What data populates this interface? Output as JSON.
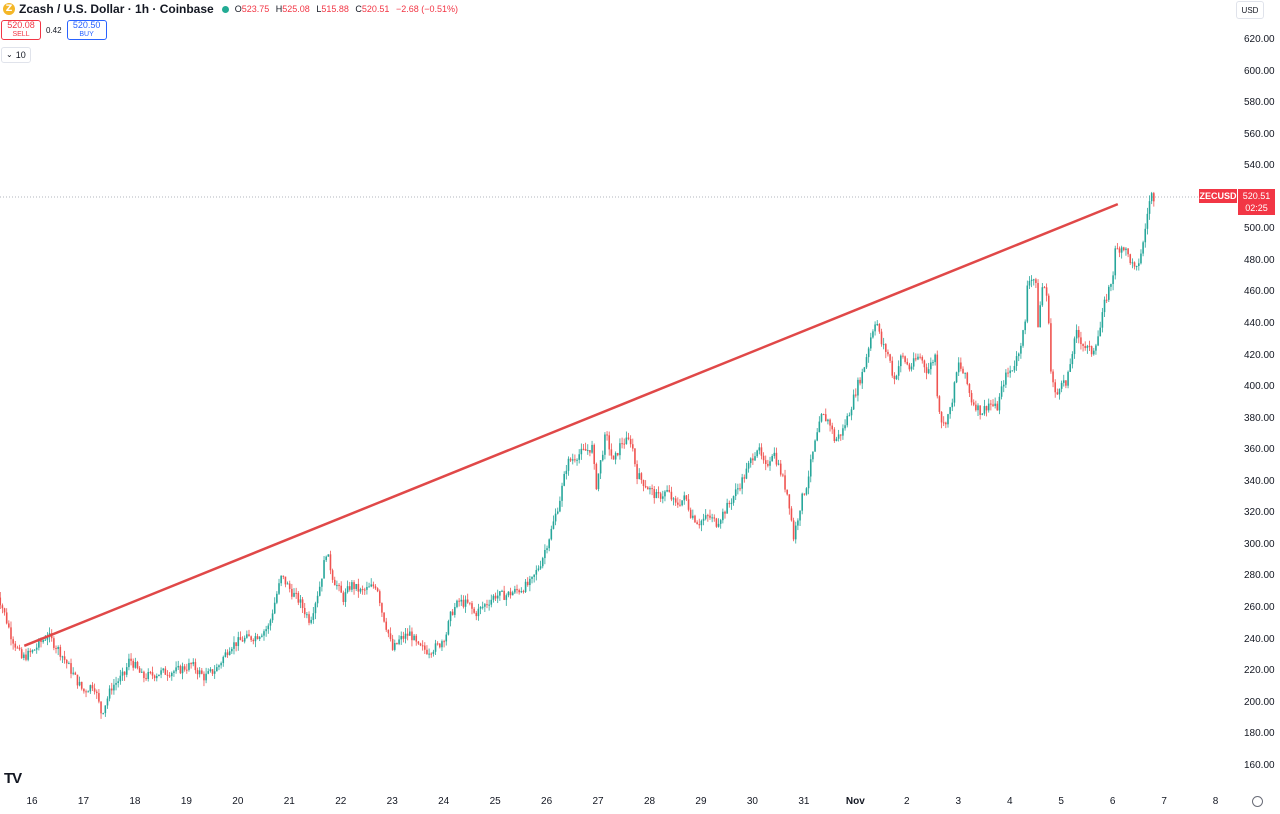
{
  "header": {
    "symbol_icon": "zcash-coin-icon",
    "coin_glyph": "Z",
    "title": "Zcash / U.S. Dollar · 1h · Coinbase",
    "status_color": "#22ab94",
    "open_label": "O",
    "open": "523.75",
    "high_label": "H",
    "high": "525.08",
    "low_label": "L",
    "low": "515.88",
    "close_label": "C",
    "close": "520.51",
    "change": "−2.68 (−0.51%)"
  },
  "trade": {
    "sell_price": "520.08",
    "sell_label": "SELL",
    "spread": "0.42",
    "buy_price": "520.50",
    "buy_label": "BUY"
  },
  "indicator": {
    "chevron_icon": "chevron-down-icon",
    "chevron": "⌄",
    "value": "10"
  },
  "currency": "USD",
  "logo": "TV",
  "price_label": {
    "symbol": "ZECUSD",
    "price": "520.51",
    "countdown": "02:25"
  },
  "colors": {
    "up": "#26a69a",
    "down": "#ef5350",
    "trendline": "#e04848",
    "last_price_tag": "#f23645"
  },
  "chart_data": {
    "type": "candlestick",
    "timeframe": "1h",
    "ylim": [
      150,
      630
    ],
    "y_ticks": [
      "620.00",
      "600.00",
      "580.00",
      "560.00",
      "540.00",
      "500.00",
      "480.00",
      "460.00",
      "440.00",
      "420.00",
      "400.00",
      "380.00",
      "360.00",
      "340.00",
      "320.00",
      "300.00",
      "280.00",
      "260.00",
      "240.00",
      "220.00",
      "200.00",
      "180.00",
      "160.00"
    ],
    "x_ticks": [
      "16",
      "17",
      "18",
      "19",
      "20",
      "21",
      "22",
      "23",
      "24",
      "25",
      "26",
      "27",
      "28",
      "29",
      "30",
      "31",
      "Nov",
      "2",
      "3",
      "4",
      "5",
      "6",
      "7",
      "8"
    ],
    "last_price": 520.51,
    "trendline": [
      {
        "day": 15.85,
        "price": 236
      },
      {
        "day": 37.1,
        "price": 516
      }
    ],
    "close_path": [
      {
        "day": 15.3,
        "price": 272
      },
      {
        "day": 15.45,
        "price": 258
      },
      {
        "day": 15.6,
        "price": 242
      },
      {
        "day": 15.8,
        "price": 228
      },
      {
        "day": 16.0,
        "price": 232
      },
      {
        "day": 16.3,
        "price": 243
      },
      {
        "day": 16.55,
        "price": 232
      },
      {
        "day": 16.8,
        "price": 218
      },
      {
        "day": 17.0,
        "price": 207
      },
      {
        "day": 17.2,
        "price": 212
      },
      {
        "day": 17.35,
        "price": 193
      },
      {
        "day": 17.55,
        "price": 210
      },
      {
        "day": 17.8,
        "price": 218
      },
      {
        "day": 17.9,
        "price": 228
      },
      {
        "day": 18.15,
        "price": 216
      },
      {
        "day": 18.5,
        "price": 219
      },
      {
        "day": 18.8,
        "price": 220
      },
      {
        "day": 19.1,
        "price": 224
      },
      {
        "day": 19.35,
        "price": 216
      },
      {
        "day": 19.6,
        "price": 222
      },
      {
        "day": 19.85,
        "price": 236
      },
      {
        "day": 20.1,
        "price": 240
      },
      {
        "day": 20.35,
        "price": 242
      },
      {
        "day": 20.6,
        "price": 248
      },
      {
        "day": 20.75,
        "price": 268
      },
      {
        "day": 20.85,
        "price": 280
      },
      {
        "day": 21.05,
        "price": 270
      },
      {
        "day": 21.2,
        "price": 264
      },
      {
        "day": 21.4,
        "price": 252
      },
      {
        "day": 21.6,
        "price": 275
      },
      {
        "day": 21.72,
        "price": 296
      },
      {
        "day": 21.85,
        "price": 279
      },
      {
        "day": 22.05,
        "price": 266
      },
      {
        "day": 22.2,
        "price": 275
      },
      {
        "day": 22.4,
        "price": 270
      },
      {
        "day": 22.7,
        "price": 275
      },
      {
        "day": 22.8,
        "price": 258
      },
      {
        "day": 22.95,
        "price": 241
      },
      {
        "day": 23.0,
        "price": 233
      },
      {
        "day": 23.15,
        "price": 240
      },
      {
        "day": 23.35,
        "price": 244
      },
      {
        "day": 23.5,
        "price": 235
      },
      {
        "day": 23.7,
        "price": 233
      },
      {
        "day": 23.9,
        "price": 236
      },
      {
        "day": 24.05,
        "price": 244
      },
      {
        "day": 24.15,
        "price": 257
      },
      {
        "day": 24.3,
        "price": 264
      },
      {
        "day": 24.5,
        "price": 262
      },
      {
        "day": 24.6,
        "price": 256
      },
      {
        "day": 24.8,
        "price": 262
      },
      {
        "day": 25.0,
        "price": 268
      },
      {
        "day": 25.2,
        "price": 268
      },
      {
        "day": 25.5,
        "price": 272
      },
      {
        "day": 25.7,
        "price": 276
      },
      {
        "day": 25.9,
        "price": 290
      },
      {
        "day": 26.1,
        "price": 310
      },
      {
        "day": 26.25,
        "price": 328
      },
      {
        "day": 26.4,
        "price": 352
      },
      {
        "day": 26.6,
        "price": 357
      },
      {
        "day": 26.9,
        "price": 362
      },
      {
        "day": 26.95,
        "price": 335
      },
      {
        "day": 27.15,
        "price": 370
      },
      {
        "day": 27.3,
        "price": 352
      },
      {
        "day": 27.45,
        "price": 365
      },
      {
        "day": 27.65,
        "price": 366
      },
      {
        "day": 27.75,
        "price": 345
      },
      {
        "day": 27.95,
        "price": 337
      },
      {
        "day": 28.15,
        "price": 330
      },
      {
        "day": 28.35,
        "price": 334
      },
      {
        "day": 28.5,
        "price": 325
      },
      {
        "day": 28.7,
        "price": 330
      },
      {
        "day": 28.8,
        "price": 320
      },
      {
        "day": 28.95,
        "price": 314
      },
      {
        "day": 29.15,
        "price": 318
      },
      {
        "day": 29.3,
        "price": 314
      },
      {
        "day": 29.55,
        "price": 326
      },
      {
        "day": 29.7,
        "price": 335
      },
      {
        "day": 29.85,
        "price": 344
      },
      {
        "day": 30.0,
        "price": 356
      },
      {
        "day": 30.1,
        "price": 362
      },
      {
        "day": 30.25,
        "price": 348
      },
      {
        "day": 30.4,
        "price": 360
      },
      {
        "day": 30.55,
        "price": 346
      },
      {
        "day": 30.7,
        "price": 330
      },
      {
        "day": 30.8,
        "price": 305
      },
      {
        "day": 30.95,
        "price": 328
      },
      {
        "day": 31.05,
        "price": 338
      },
      {
        "day": 31.2,
        "price": 362
      },
      {
        "day": 31.35,
        "price": 382
      },
      {
        "day": 31.5,
        "price": 378
      },
      {
        "day": 31.6,
        "price": 366
      },
      {
        "day": 31.75,
        "price": 372
      },
      {
        "day": 31.9,
        "price": 386
      },
      {
        "day": 32.05,
        "price": 402
      },
      {
        "day": 32.15,
        "price": 410
      },
      {
        "day": 32.3,
        "price": 432
      },
      {
        "day": 32.4,
        "price": 444
      },
      {
        "day": 32.5,
        "price": 428
      },
      {
        "day": 32.65,
        "price": 420
      },
      {
        "day": 32.75,
        "price": 404
      },
      {
        "day": 32.9,
        "price": 420
      },
      {
        "day": 33.05,
        "price": 412
      },
      {
        "day": 33.25,
        "price": 420
      },
      {
        "day": 33.4,
        "price": 410
      },
      {
        "day": 33.55,
        "price": 420
      },
      {
        "day": 33.6,
        "price": 392
      },
      {
        "day": 33.7,
        "price": 375
      },
      {
        "day": 33.85,
        "price": 386
      },
      {
        "day": 34.0,
        "price": 415
      },
      {
        "day": 34.15,
        "price": 405
      },
      {
        "day": 34.25,
        "price": 392
      },
      {
        "day": 34.45,
        "price": 384
      },
      {
        "day": 34.6,
        "price": 390
      },
      {
        "day": 34.75,
        "price": 386
      },
      {
        "day": 34.9,
        "price": 406
      },
      {
        "day": 35.05,
        "price": 412
      },
      {
        "day": 35.15,
        "price": 420
      },
      {
        "day": 35.3,
        "price": 440
      },
      {
        "day": 35.35,
        "price": 470
      },
      {
        "day": 35.5,
        "price": 468
      },
      {
        "day": 35.55,
        "price": 440
      },
      {
        "day": 35.65,
        "price": 468
      },
      {
        "day": 35.75,
        "price": 450
      },
      {
        "day": 35.8,
        "price": 410
      },
      {
        "day": 35.9,
        "price": 392
      },
      {
        "day": 36.0,
        "price": 406
      },
      {
        "day": 36.1,
        "price": 400
      },
      {
        "day": 36.2,
        "price": 420
      },
      {
        "day": 36.3,
        "price": 434
      },
      {
        "day": 36.45,
        "price": 426
      },
      {
        "day": 36.6,
        "price": 422
      },
      {
        "day": 36.75,
        "price": 436
      },
      {
        "day": 36.85,
        "price": 454
      },
      {
        "day": 37.0,
        "price": 470
      },
      {
        "day": 37.05,
        "price": 486
      },
      {
        "day": 37.2,
        "price": 490
      },
      {
        "day": 37.35,
        "price": 480
      },
      {
        "day": 37.45,
        "price": 472
      },
      {
        "day": 37.6,
        "price": 492
      },
      {
        "day": 37.68,
        "price": 512
      },
      {
        "day": 37.75,
        "price": 522
      },
      {
        "day": 37.8,
        "price": 520.51
      }
    ]
  }
}
